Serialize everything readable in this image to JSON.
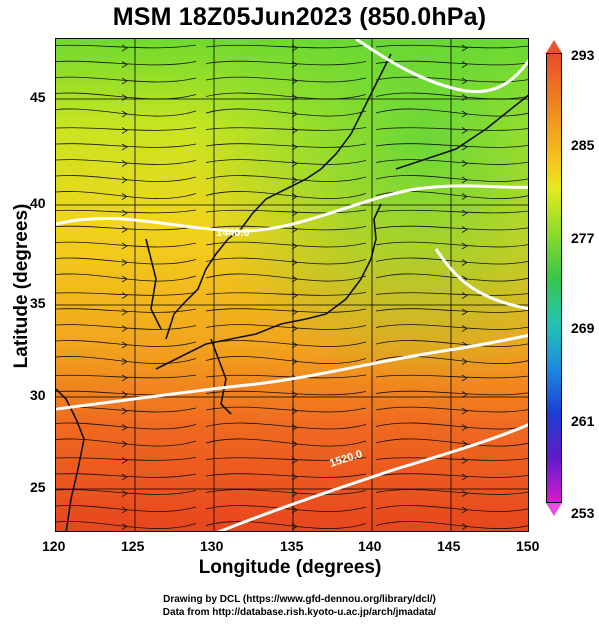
{
  "title": "MSM 18Z05Jun2023 (850.0hPa)",
  "xaxis": {
    "label": "Longitude (degrees)",
    "ticks": [
      "120",
      "125",
      "130",
      "135",
      "140",
      "145",
      "150"
    ]
  },
  "yaxis": {
    "label": "Latitude  (degrees)",
    "ticks": [
      "45",
      "40",
      "35",
      "30",
      "25"
    ]
  },
  "colorbar": {
    "labels": [
      "293",
      "285",
      "277",
      "269",
      "261",
      "253"
    ]
  },
  "contours": [
    {
      "label": "1440.0"
    },
    {
      "label": "1520.0"
    }
  ],
  "credits": {
    "line1": "Drawing by DCL (https://www.gfd-dennou.org/library/dcl/)",
    "line2": "Data from http://database.rish.kyoto-u.ac.jp/arch/jmadata/"
  },
  "colors": {
    "warm": "#e8501f",
    "mid": "#f3d21a",
    "cool": "#3fd24b"
  }
}
